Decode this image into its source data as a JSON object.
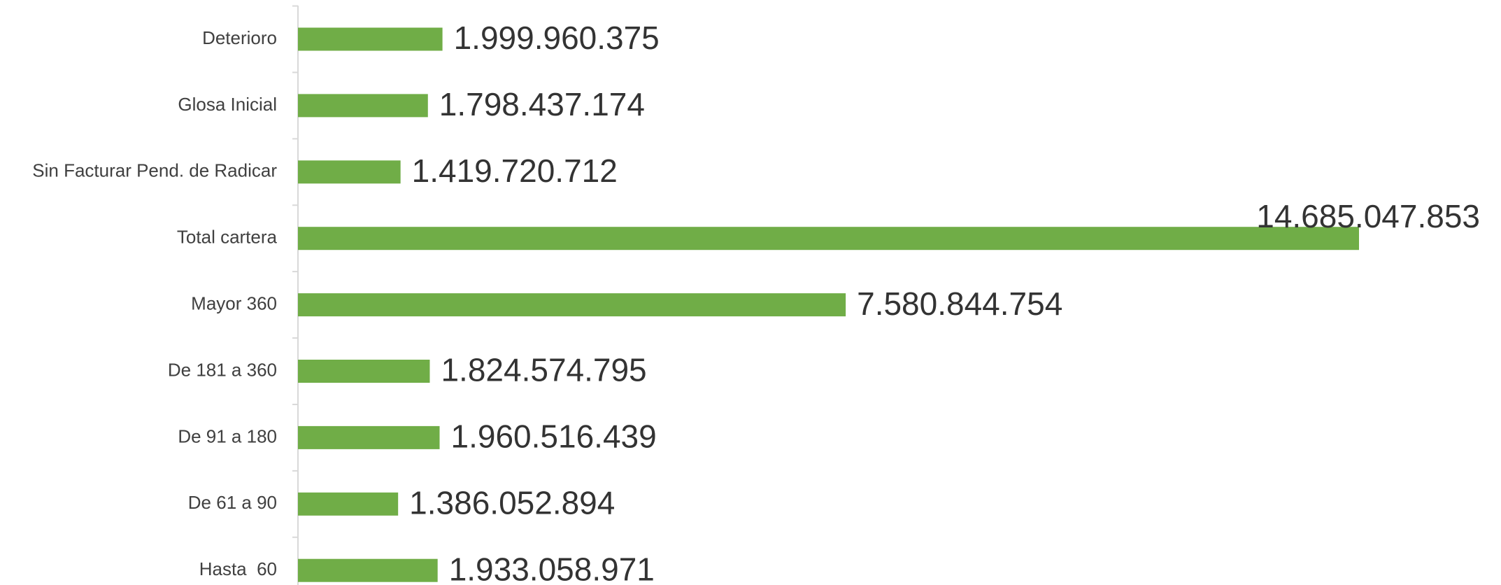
{
  "chart_data": {
    "type": "bar",
    "orientation": "horizontal",
    "categories": [
      "Deterioro",
      "Glosa Inicial",
      "Sin Facturar Pend. de Radicar",
      "Total cartera",
      "Mayor 360",
      "De 181 a 360",
      "De 91 a 180",
      "De 61 a 90",
      "Hasta  60"
    ],
    "values": [
      1999960375,
      1798437174,
      1419720712,
      14685047853,
      7580844754,
      1824574795,
      1960516439,
      1386052894,
      1933058971
    ],
    "value_labels": [
      "1.999.960.375",
      "1.798.437.174",
      "1.419.720.712",
      "14.685.047.853",
      "7.580.844.754",
      "1.824.574.795",
      "1.960.516.439",
      "1.386.052.894",
      "1.933.058.971"
    ],
    "color": "#70ad47"
  }
}
